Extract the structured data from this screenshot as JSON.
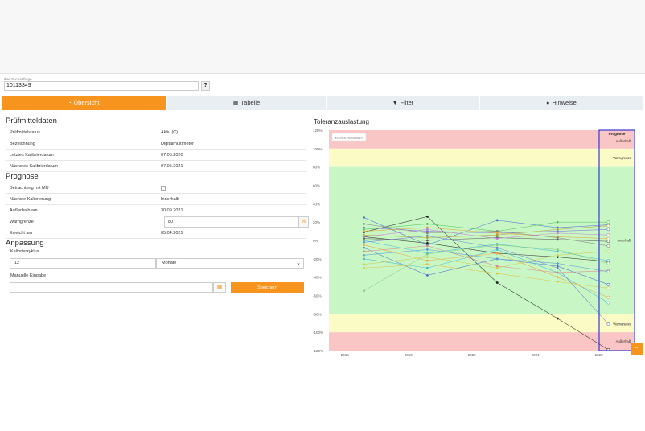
{
  "search": {
    "label": "Ihre Suchanfrage",
    "value": "10113349",
    "help_label": "?"
  },
  "tabs": [
    {
      "icon": "dashboard-icon",
      "glyph": "◔",
      "label": "Übersicht",
      "active": true
    },
    {
      "icon": "table-icon",
      "glyph": "▦",
      "label": "Tabelle",
      "active": false
    },
    {
      "icon": "filter-icon",
      "glyph": "▼",
      "label": "Filter",
      "active": false
    },
    {
      "icon": "info-icon",
      "glyph": "●",
      "label": "Hinweise",
      "active": false
    }
  ],
  "pruefmittel": {
    "title": "Prüfmitteldaten",
    "rows": [
      {
        "label": "Prüfmittelstatus",
        "value": "Aktiv (C)"
      },
      {
        "label": "Bezeichnung",
        "value": "Digitalmultimeter"
      },
      {
        "label": "Letztes Kalibrierdatum",
        "value": "07.05.2020"
      },
      {
        "label": "Nächstes Kalibrierdatum",
        "value": "07.05.2021"
      }
    ]
  },
  "prognose": {
    "title": "Prognose",
    "mu_label": "Betrachtung mit MU",
    "naechste_label": "Nächste Kalibrierung",
    "naechste_value": "Innerhalb",
    "ausserhalb_label": "Außerhalb am",
    "ausserhalb_value": "30.09.2021",
    "warngrenze_label": "Warngrenze",
    "warngrenze_value": "80",
    "warngrenze_unit": "%",
    "erreicht_label": "Erreicht am",
    "erreicht_value": "05.04.2021"
  },
  "anpassung": {
    "title": "Anpassung",
    "zyklus_label": "Kalibrierzyklus",
    "zyklus_value": "12",
    "zyklus_unit": "Monate",
    "manuell_label": "Manuelle Eingabe",
    "save_label": "Speichern"
  },
  "chart_data": {
    "type": "line",
    "title": "Toleranzauslastung",
    "zoom_reset_label": "Zoom zurücksetzen",
    "yticks": [
      "120%",
      "100%",
      "80%",
      "60%",
      "40%",
      "20%",
      "0%",
      "-20%",
      "-40%",
      "-60%",
      "-80%",
      "-100%",
      "-120%"
    ],
    "ylim": [
      -120,
      120
    ],
    "xticks": [
      {
        "label": "2018",
        "year": 2018
      },
      {
        "label": "2019",
        "year": 2019
      },
      {
        "label": "2020",
        "year": 2020
      },
      {
        "label": "2021",
        "year": 2021
      },
      {
        "label": "2022",
        "year": 2022
      }
    ],
    "measurement_years": [
      2018.3,
      2019.3,
      2020.4,
      2021.35,
      2022.15
    ],
    "bands": [
      {
        "from": 100,
        "to": 120,
        "color": "#f9c5c5"
      },
      {
        "from": 80,
        "to": 100,
        "color": "#fbfbc5"
      },
      {
        "from": -80,
        "to": 80,
        "color": "#c8f7c5"
      },
      {
        "from": -100,
        "to": -80,
        "color": "#fbfbc5"
      },
      {
        "from": -120,
        "to": -100,
        "color": "#f9c5c5"
      }
    ],
    "zone_labels": [
      {
        "text": "Außerhalb",
        "y": 108
      },
      {
        "text": "Warngrenze",
        "y": 90
      },
      {
        "text": "Innerhalb",
        "y": 0
      },
      {
        "text": "Warngrenze",
        "y": -91
      },
      {
        "text": "Außerhalb",
        "y": -110
      }
    ],
    "prognose_label": "Prognose",
    "series": [
      {
        "color": "#222222",
        "values": [
          9,
          26,
          -46,
          -85,
          -119
        ]
      },
      {
        "color": "#222222",
        "values": [
          4,
          -3,
          -14,
          -18,
          -23
        ]
      },
      {
        "color": "#555555",
        "values": [
          2,
          0,
          3,
          1,
          -1
        ]
      },
      {
        "color": "#4a6cd4",
        "values": [
          25,
          -5,
          22,
          14,
          17
        ]
      },
      {
        "color": "#4a6cd4",
        "values": [
          -8,
          -38,
          -20,
          -28,
          -48
        ]
      },
      {
        "color": "#7b6ee0",
        "values": [
          14,
          10,
          8,
          10,
          12
        ]
      },
      {
        "color": "#3fb6d8",
        "values": [
          -20,
          -30,
          -10,
          -35,
          -68
        ]
      },
      {
        "color": "#3fb6d8",
        "values": [
          0,
          -14,
          -4,
          -12,
          -22
        ]
      },
      {
        "color": "#87c97a",
        "values": [
          -55,
          -15,
          -5,
          -10,
          -25
        ]
      },
      {
        "color": "#56c25b",
        "values": [
          12,
          18,
          10,
          20,
          20
        ]
      },
      {
        "color": "#f1a340",
        "values": [
          -5,
          -22,
          -14,
          -40,
          -62
        ]
      },
      {
        "color": "#e8a23a",
        "values": [
          10,
          14,
          8,
          4,
          2
        ]
      },
      {
        "color": "#d98a8a",
        "values": [
          -12,
          -6,
          -28,
          -35,
          -33
        ]
      },
      {
        "color": "#b5a03a",
        "values": [
          6,
          3,
          6,
          12,
          16
        ]
      },
      {
        "color": "#6a7bd6",
        "values": [
          -2,
          5,
          -8,
          -30,
          -91
        ]
      },
      {
        "color": "#7f7f7f",
        "values": [
          18,
          8,
          10,
          3,
          -6
        ]
      },
      {
        "color": "#5a9bd6",
        "values": [
          -16,
          -10,
          -20,
          -25,
          -34
        ]
      },
      {
        "color": "#d1c94a",
        "values": [
          -26,
          -18,
          -30,
          -16,
          -12
        ]
      },
      {
        "color": "#c67fd6",
        "values": [
          4,
          12,
          2,
          8,
          6
        ]
      },
      {
        "color": "#e0c040",
        "values": [
          -30,
          -26,
          -36,
          -45,
          -52
        ]
      }
    ]
  }
}
